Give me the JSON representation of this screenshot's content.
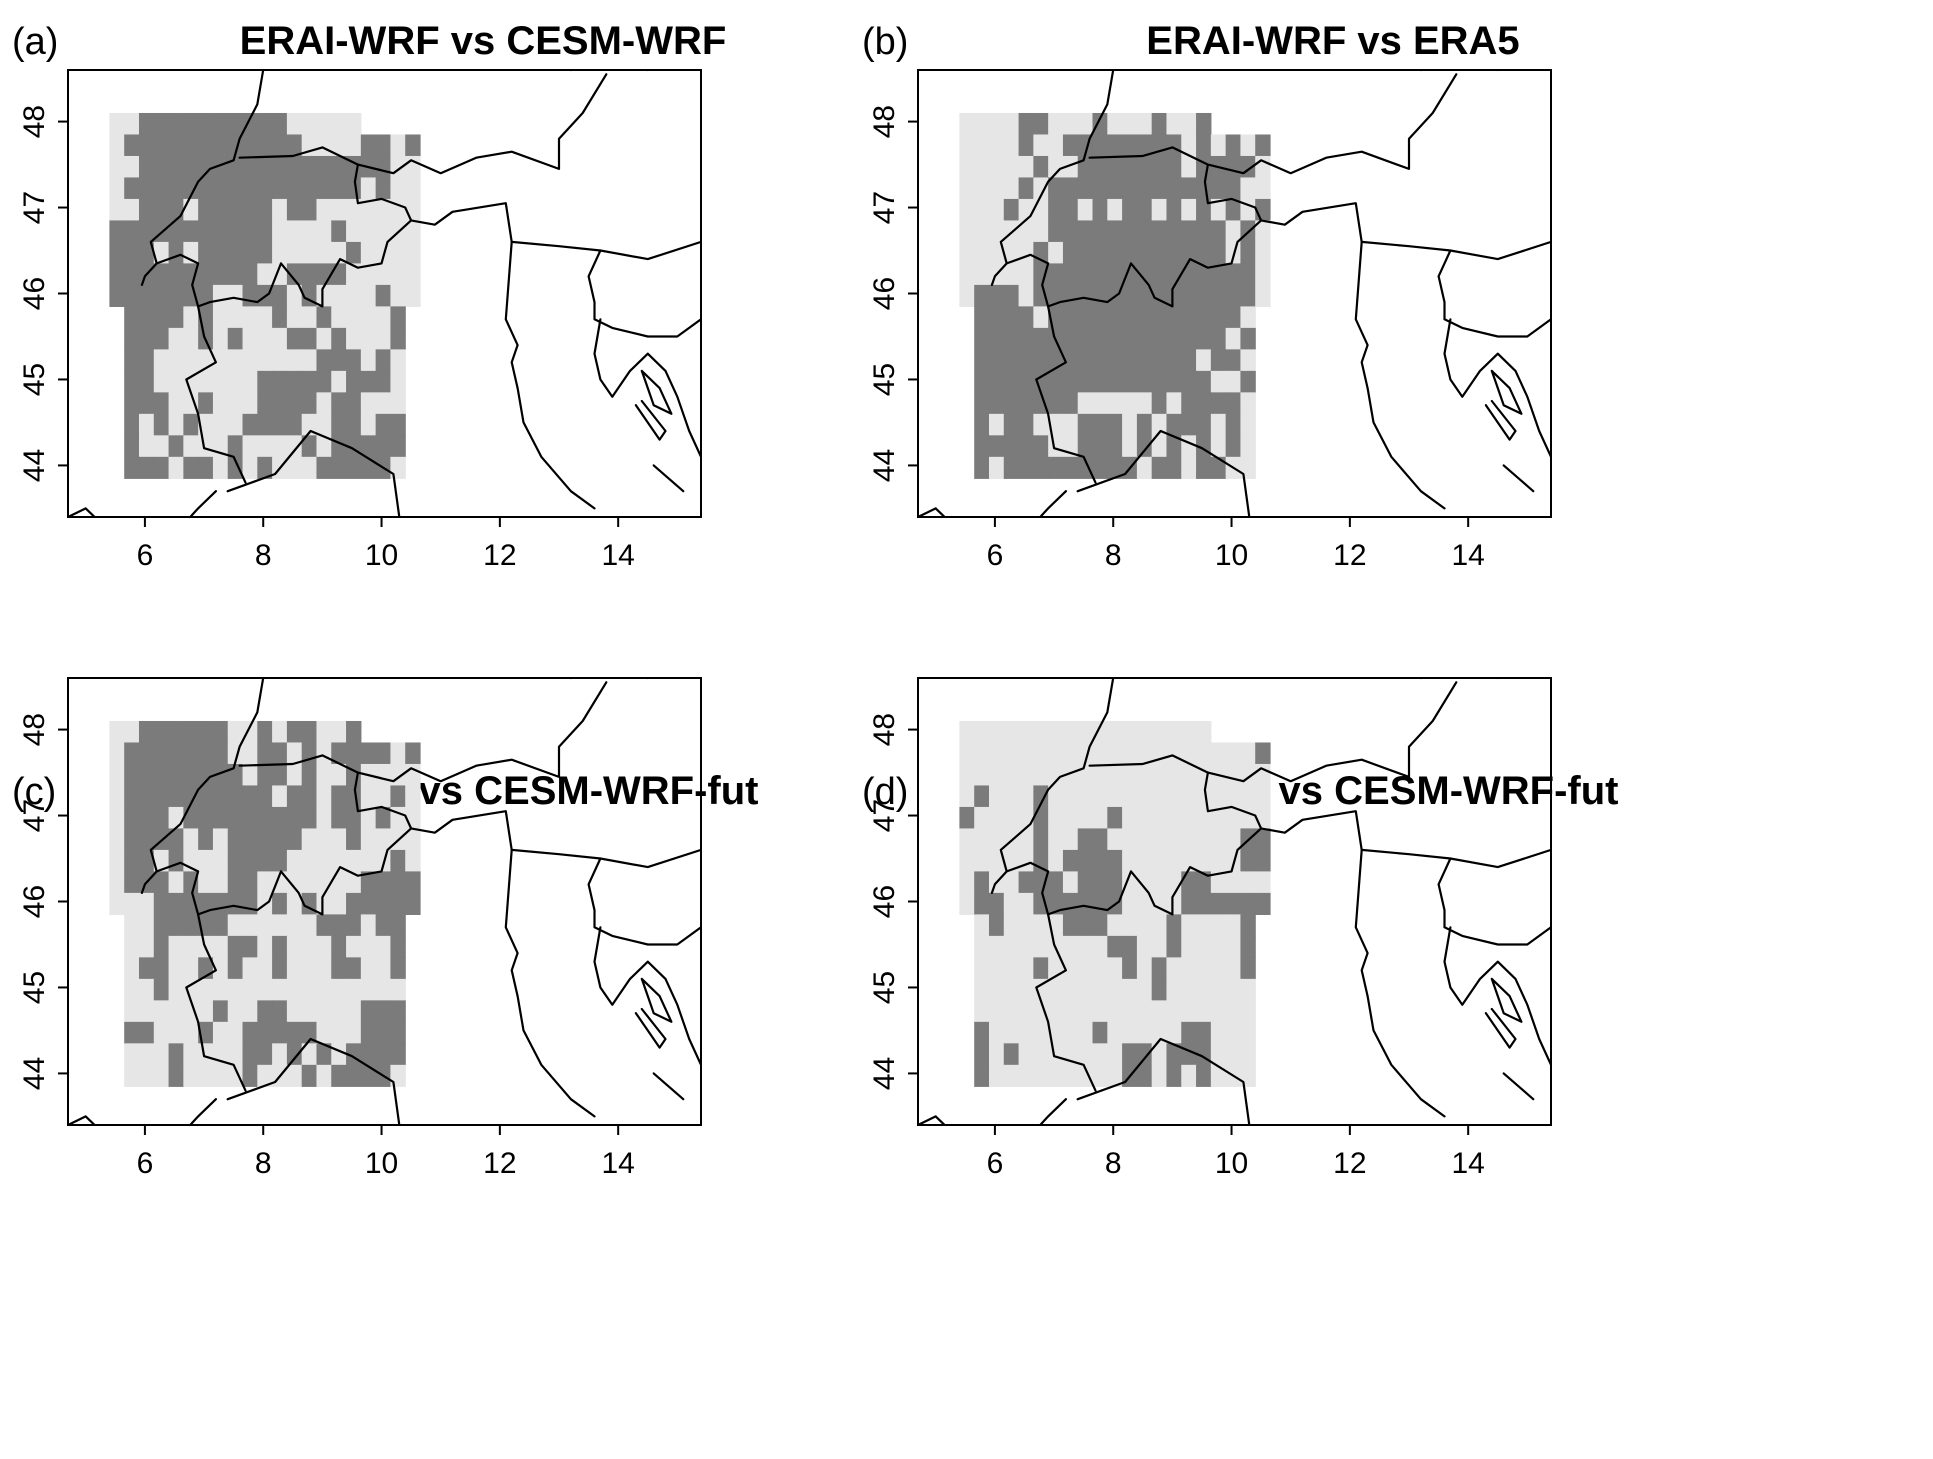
{
  "figure": {
    "panels": [
      {
        "id": "a",
        "tag": "(a)",
        "title": "ERAI-WRF vs CESM-WRF",
        "x_ticks": [
          "6",
          "8",
          "10",
          "12",
          "14"
        ],
        "y_ticks": [
          "44",
          "45",
          "46",
          "47",
          "48"
        ],
        "x_range": [
          4.7,
          15.4
        ],
        "y_range": [
          43.4,
          48.6
        ],
        "grid": {
          "lon_min": 5.4,
          "lat_max": 48.1,
          "cell_deg": 0.25
        }
      },
      {
        "id": "b",
        "tag": "(b)",
        "title": "ERAI-WRF vs ERA5",
        "x_ticks": [
          "6",
          "8",
          "10",
          "12",
          "14"
        ],
        "y_ticks": [
          "44",
          "45",
          "46",
          "47",
          "48"
        ],
        "x_range": [
          4.7,
          15.4
        ],
        "y_range": [
          43.4,
          48.6
        ],
        "grid": {
          "lon_min": 5.4,
          "lat_max": 48.1,
          "cell_deg": 0.25
        }
      },
      {
        "id": "c",
        "tag": "(c)",
        "title": "ERAI-WRF vs CESM-WRF-fut",
        "x_ticks": [
          "6",
          "8",
          "10",
          "12",
          "14"
        ],
        "y_ticks": [
          "44",
          "45",
          "46",
          "47",
          "48"
        ],
        "x_range": [
          4.7,
          15.4
        ],
        "y_range": [
          43.4,
          48.6
        ],
        "grid": {
          "lon_min": 5.4,
          "lat_max": 48.1,
          "cell_deg": 0.25
        }
      },
      {
        "id": "d",
        "tag": "(d)",
        "title": "CESM-WRF vs CESM-WRF-fut",
        "x_ticks": [
          "6",
          "8",
          "10",
          "12",
          "14"
        ],
        "y_ticks": [
          "44",
          "45",
          "46",
          "47",
          "48"
        ],
        "x_range": [
          4.7,
          15.4
        ],
        "y_range": [
          43.4,
          48.6
        ],
        "grid": {
          "lon_min": 5.4,
          "lat_max": 48.1,
          "cell_deg": 0.25
        }
      }
    ],
    "colors": {
      "domain_fill": "#e6e6e6",
      "significant_fill": "#7b7b7b",
      "border_line": "#000000",
      "axis": "#000000",
      "background": "#ffffff"
    }
  }
}
